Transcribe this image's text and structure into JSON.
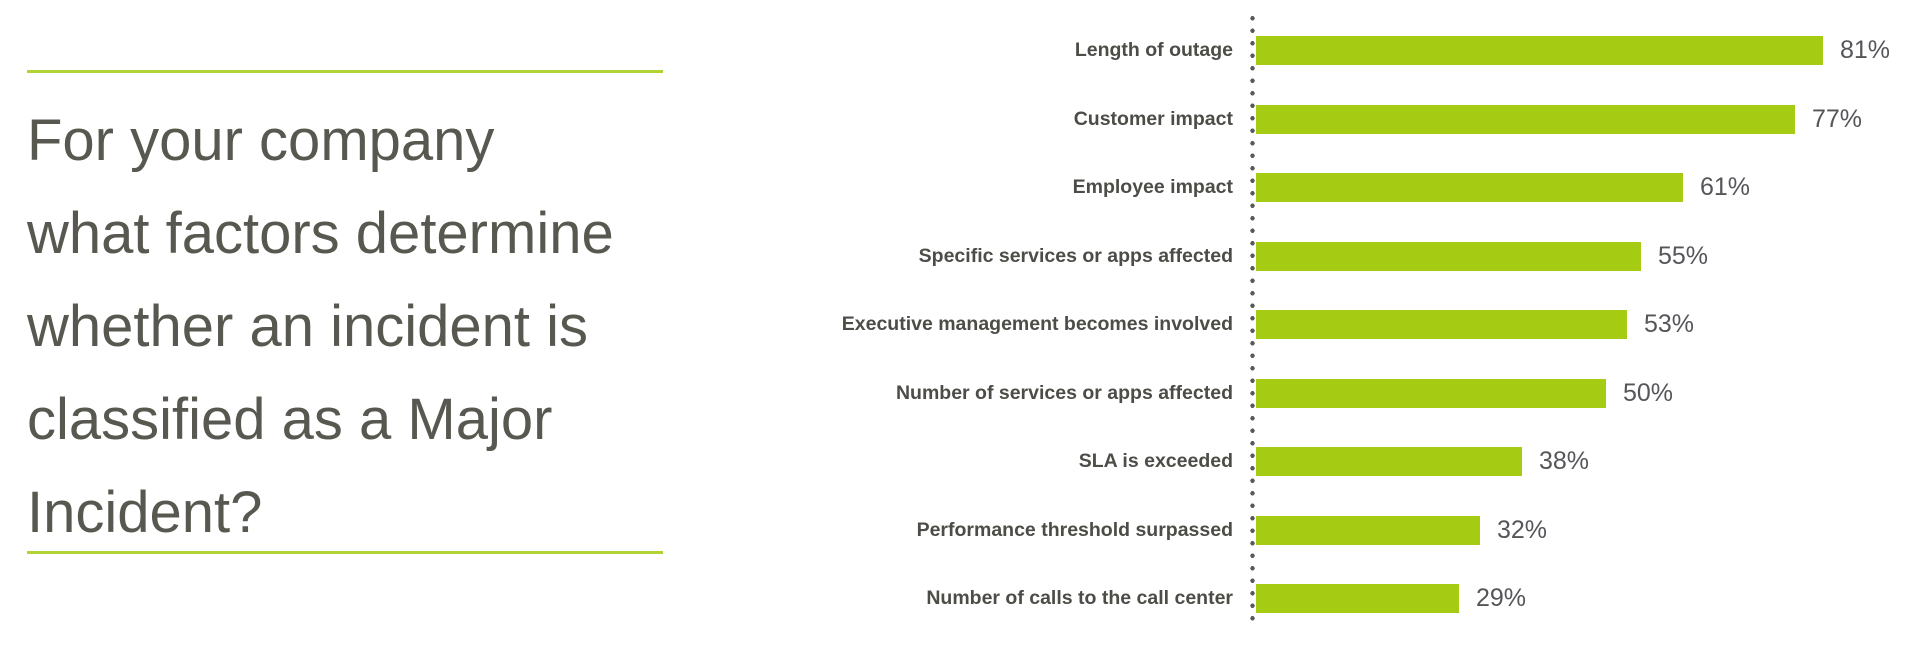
{
  "question": {
    "lines": [
      "For your company",
      "what factors determine",
      "whether an incident is",
      "classified as a Major",
      "Incident?"
    ]
  },
  "chart_data": {
    "type": "bar",
    "orientation": "horizontal",
    "title": "For your company what factors determine whether an incident is classified as a Major Incident?",
    "categories": [
      "Length of outage",
      "Customer impact",
      "Employee impact",
      "Specific services or apps affected",
      "Executive management becomes involved",
      "Number of services or apps affected",
      "SLA is exceeded",
      "Performance threshold surpassed",
      "Number of calls to the call center"
    ],
    "values": [
      81,
      77,
      61,
      55,
      53,
      50,
      38,
      32,
      29
    ],
    "value_labels": [
      "81%",
      "77%",
      "61%",
      "55%",
      "53%",
      "50%",
      "38%",
      "32%",
      "29%"
    ],
    "unit": "percent",
    "xlim": [
      0,
      100
    ],
    "grid": false,
    "legend": false,
    "axis_style": "dotted-vertical-baseline",
    "bar_color": "#a5cc12"
  },
  "colors": {
    "accent_rule": "#b2d334",
    "bar": "#a5cc12",
    "axis_dots": "#58595b",
    "category_label": "#4c4d47",
    "value_label": "#55565a",
    "question_text": "#585850"
  }
}
